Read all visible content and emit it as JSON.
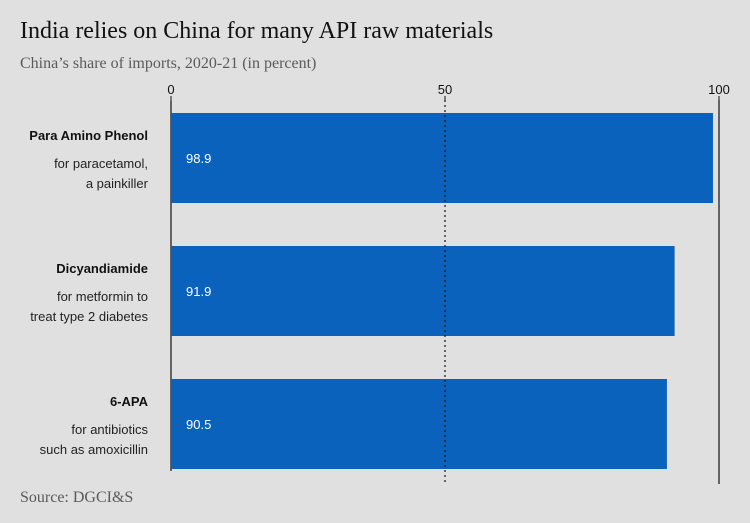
{
  "title": "India relies on China for many API raw materials",
  "subtitle": "China’s share of imports, 2020-21 (in percent)",
  "source": "Source: DGCI&S",
  "colors": {
    "background": "#e0e0e0",
    "bar": "#0b62bd",
    "text": "#111111",
    "muted": "#5a5a5a"
  },
  "chart_data": {
    "type": "bar",
    "orientation": "horizontal",
    "xlim": [
      0,
      100
    ],
    "xticks": [
      0,
      50,
      100
    ],
    "reference_lines": [
      50,
      100
    ],
    "categories": [
      {
        "name": "Para Amino Phenol",
        "description": [
          "for paracetamol,",
          "a painkiller"
        ],
        "value": 98.9,
        "label": "98.9"
      },
      {
        "name": "Dicyandiamide",
        "description": [
          "for metformin to",
          "treat type 2 diabetes"
        ],
        "value": 91.9,
        "label": "91.9"
      },
      {
        "name": "6-APA",
        "description": [
          "for antibiotics",
          "such as amoxicillin"
        ],
        "value": 90.5,
        "label": "90.5"
      }
    ]
  }
}
